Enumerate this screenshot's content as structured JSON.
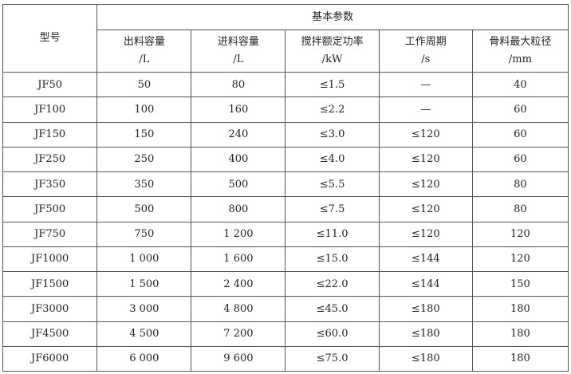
{
  "table": {
    "model_header": "型号",
    "group_header": "基本参数",
    "columns": [
      {
        "name": "出料容量",
        "unit": "/L"
      },
      {
        "name": "进料容量",
        "unit": "/L"
      },
      {
        "name": "搅拌额定功率",
        "unit": "/kW"
      },
      {
        "name": "工作周期",
        "unit": "/s"
      },
      {
        "name": "骨料最大粒径",
        "unit": "/mm"
      }
    ],
    "rows": [
      [
        "JF50",
        "50",
        "80",
        "≤1.5",
        "—",
        "40"
      ],
      [
        "JF100",
        "100",
        "160",
        "≤2.2",
        "—",
        "60"
      ],
      [
        "JF150",
        "150",
        "240",
        "≤3.0",
        "≤120",
        "60"
      ],
      [
        "JF250",
        "250",
        "400",
        "≤4.0",
        "≤120",
        "60"
      ],
      [
        "JF350",
        "350",
        "500",
        "≤5.5",
        "≤120",
        "80"
      ],
      [
        "JF500",
        "500",
        "800",
        "≤7.5",
        "≤120",
        "80"
      ],
      [
        "JF750",
        "750",
        "1 200",
        "≤11.0",
        "≤120",
        "120"
      ],
      [
        "JF1000",
        "1 000",
        "1 600",
        "≤15.0",
        "≤144",
        "120"
      ],
      [
        "JF1500",
        "1 500",
        "2 400",
        "≤22.0",
        "≤144",
        "150"
      ],
      [
        "JF3000",
        "3 000",
        "4 800",
        "≤45.0",
        "≤180",
        "180"
      ],
      [
        "JF4500",
        "4 500",
        "7 200",
        "≤60.0",
        "≤180",
        "180"
      ],
      [
        "JF6000",
        "6 000",
        "9 600",
        "≤75.0",
        "≤180",
        "180"
      ]
    ]
  }
}
